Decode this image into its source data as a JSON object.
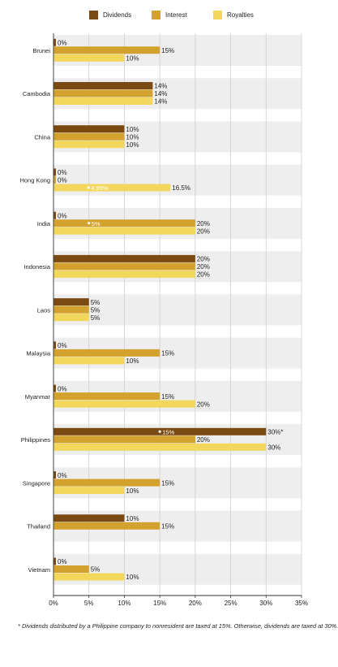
{
  "chart_data": {
    "type": "bar",
    "orientation": "horizontal",
    "categories": [
      "Brunei",
      "Cambodia",
      "China",
      "Hong Kong",
      "India",
      "Indonesia",
      "Laos",
      "Malaysia",
      "Myanmar",
      "Philippines",
      "Singapore",
      "Thailand",
      "Vietnam"
    ],
    "series": [
      {
        "name": "Dividends",
        "color": "#7b4a12",
        "values": [
          0,
          14,
          10,
          0,
          0,
          20,
          5,
          0,
          0,
          30,
          0,
          10,
          0
        ],
        "labels": [
          "0%",
          "14%",
          "10%",
          "0%",
          "0%",
          "20%",
          "5%",
          "0%",
          "0%",
          "30%*",
          "0%",
          "10%",
          "0%"
        ]
      },
      {
        "name": "Interest",
        "color": "#d3a12e",
        "values": [
          15,
          14,
          10,
          0,
          20,
          20,
          5,
          15,
          15,
          20,
          15,
          15,
          5
        ],
        "labels": [
          "15%",
          "14%",
          "10%",
          "0%",
          "20%",
          "20%",
          "5%",
          "15%",
          "15%",
          "20%",
          "15%",
          "15%",
          "5%"
        ]
      },
      {
        "name": "Royalties",
        "color": "#f2d75c",
        "values": [
          10,
          14,
          10,
          16.5,
          20,
          20,
          5,
          10,
          20,
          30,
          10,
          null,
          10
        ],
        "labels": [
          "10%",
          "14%",
          "10%",
          "16.5%",
          "20%",
          "20%",
          "5%",
          "10%",
          "20%",
          "30%",
          "10%",
          "",
          "10%"
        ]
      }
    ],
    "inner_markers": [
      {
        "category": "Hong Kong",
        "series": "Royalties",
        "value": 4.95,
        "label": "4.95%"
      },
      {
        "category": "India",
        "series": "Interest",
        "value": 5,
        "label": "5%"
      },
      {
        "category": "Philippines",
        "series": "Dividends",
        "value": 15,
        "label": "15%"
      }
    ],
    "xlim": [
      0,
      35
    ],
    "xticks": [
      0,
      5,
      10,
      15,
      20,
      25,
      30,
      35
    ],
    "xtick_labels": [
      "0%",
      "5%",
      "10%",
      "15%",
      "20%",
      "25%",
      "30%",
      "35%"
    ],
    "grid": true,
    "legend_position": "top"
  },
  "footnote": "Dividends distributed by a Philippine company to nonresident are taxed at 15%. Otherwise, dividends are taxed at 30%.",
  "footnote_marker": "*"
}
